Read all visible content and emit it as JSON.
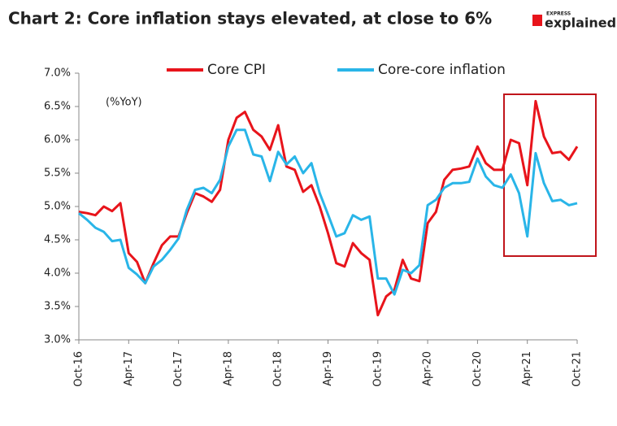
{
  "logo": {
    "top": "EXPRESS",
    "main": "explained."
  },
  "chart_data": {
    "type": "line",
    "title": "Chart 2: Core inflation stays elevated, at close to 6%",
    "annotation": "(%YoY)",
    "categories": [
      "Oct-16",
      null,
      null,
      null,
      null,
      null,
      "Apr-17",
      null,
      null,
      null,
      null,
      null,
      "Oct-17",
      null,
      null,
      null,
      null,
      null,
      "Apr-18",
      null,
      null,
      null,
      null,
      null,
      "Oct-18",
      null,
      null,
      null,
      null,
      null,
      "Apr-19",
      null,
      null,
      null,
      null,
      null,
      "Oct-19",
      null,
      null,
      null,
      null,
      null,
      "Apr-20",
      null,
      null,
      null,
      null,
      null,
      "Oct-20",
      null,
      null,
      null,
      null,
      null,
      "Apr-21",
      null,
      null,
      null,
      null,
      null,
      "Oct-21"
    ],
    "series": [
      {
        "name": "Core CPI",
        "color": "#e8141b",
        "values": [
          4.92,
          4.9,
          4.87,
          5.0,
          4.93,
          5.05,
          4.3,
          4.17,
          3.85,
          4.15,
          4.42,
          4.55,
          4.55,
          4.9,
          5.2,
          5.15,
          5.07,
          5.25,
          6.0,
          6.33,
          6.42,
          6.15,
          6.05,
          5.85,
          6.22,
          5.6,
          5.55,
          5.22,
          5.32,
          5.0,
          4.6,
          4.15,
          4.1,
          4.45,
          4.3,
          4.2,
          3.37,
          3.65,
          3.75,
          4.2,
          3.92,
          3.88,
          4.75,
          4.92,
          5.4,
          5.55,
          5.57,
          5.6,
          5.9,
          5.65,
          5.55,
          5.55,
          6.0,
          5.95,
          5.32,
          6.58,
          6.05,
          5.8,
          5.82,
          5.7,
          5.9
        ]
      },
      {
        "name": "Core-core inflation",
        "color": "#29b5e8",
        "values": [
          4.9,
          4.8,
          4.68,
          4.62,
          4.48,
          4.5,
          4.08,
          3.98,
          3.85,
          4.1,
          4.2,
          4.35,
          4.52,
          4.95,
          5.25,
          5.28,
          5.2,
          5.4,
          5.9,
          6.15,
          6.15,
          5.78,
          5.75,
          5.38,
          5.82,
          5.63,
          5.75,
          5.5,
          5.65,
          5.2,
          4.88,
          4.55,
          4.6,
          4.87,
          4.8,
          4.85,
          3.92,
          3.92,
          3.68,
          4.05,
          4.0,
          4.12,
          5.02,
          5.1,
          5.28,
          5.35,
          5.35,
          5.37,
          5.72,
          5.45,
          5.32,
          5.28,
          5.48,
          5.2,
          4.55,
          5.8,
          5.35,
          5.08,
          5.1,
          5.02,
          5.05
        ]
      }
    ],
    "ylim": [
      3.0,
      7.0
    ],
    "yticks": [
      {
        "value": 3.0,
        "label": "3.0%"
      },
      {
        "value": 3.5,
        "label": "3.5%"
      },
      {
        "value": 4.0,
        "label": "4.0%"
      },
      {
        "value": 4.5,
        "label": "4.5%"
      },
      {
        "value": 5.0,
        "label": "5.0%"
      },
      {
        "value": 5.5,
        "label": "5.5%"
      },
      {
        "value": 6.0,
        "label": "6.0%"
      },
      {
        "value": 6.5,
        "label": "6.5%"
      },
      {
        "value": 7.0,
        "label": "7.0%"
      }
    ],
    "grid": false
  }
}
